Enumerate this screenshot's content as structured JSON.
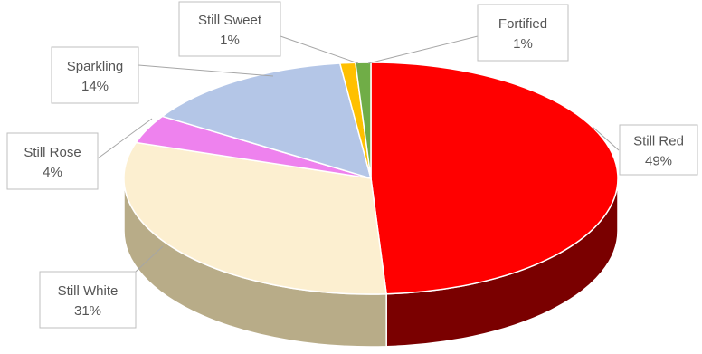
{
  "chart_data": {
    "type": "pie",
    "style": "3d",
    "title": "",
    "legend": "none",
    "slices": [
      {
        "label": "Still Red",
        "value": 49,
        "display": "49%",
        "color": "#ff0000",
        "side_color": "#7a0000"
      },
      {
        "label": "Still White",
        "value": 31,
        "display": "31%",
        "color": "#fcefd0",
        "side_color": "#b8ac88"
      },
      {
        "label": "Still Rose",
        "value": 4,
        "display": "4%",
        "color": "#ee82ee",
        "side_color": "#9a4f9a"
      },
      {
        "label": "Sparkling",
        "value": 14,
        "display": "14%",
        "color": "#b4c6e7",
        "side_color": "#7f8fa8"
      },
      {
        "label": "Still Sweet",
        "value": 1,
        "display": "1%",
        "color": "#ffc000",
        "side_color": "#a07800"
      },
      {
        "label": "Fortified",
        "value": 1,
        "display": "1%",
        "color": "#70ad47",
        "side_color": "#456b2c"
      }
    ]
  }
}
